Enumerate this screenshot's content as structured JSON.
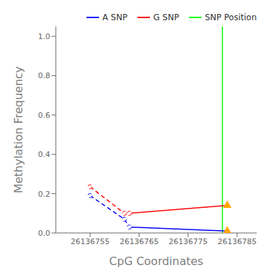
{
  "chart_data": {
    "type": "line",
    "xlabel": "CpG Coordinates",
    "ylabel": "Methylation Frequency",
    "x": [
      26136755,
      26136762,
      26136763,
      26136783
    ],
    "series": [
      {
        "name": "A SNP",
        "type": "line",
        "color": "blue",
        "line_style": "dashed",
        "marker": "circle",
        "values": [
          0.19,
          0.07,
          0.03,
          0.01
        ]
      },
      {
        "name": "G SNP",
        "type": "line",
        "color": "red",
        "line_style": "dashed",
        "marker": "circle",
        "values": [
          0.235,
          0.1,
          0.1,
          0.14
        ]
      },
      {
        "type": "scatter",
        "color": "#FFA500",
        "marker": "triangle",
        "x": [
          26136783,
          26136783
        ],
        "values": [
          0.01,
          0.14
        ]
      },
      {
        "name": "SNP Position",
        "type": "vline",
        "color": "lime",
        "x": [
          26136782
        ]
      }
    ],
    "xlim": [
      26136748,
      26136789
    ],
    "xticks": [
      26136755,
      26136765,
      26136775,
      26136785
    ],
    "ylim": [
      0.0,
      1.05
    ],
    "yticks": [
      {
        "value": 0.0,
        "label": "0.0"
      },
      0.2,
      0.4,
      0.6,
      0.8,
      {
        "value": 1.0,
        "label": "1.0"
      }
    ],
    "grid": false,
    "legend": "upper right"
  }
}
